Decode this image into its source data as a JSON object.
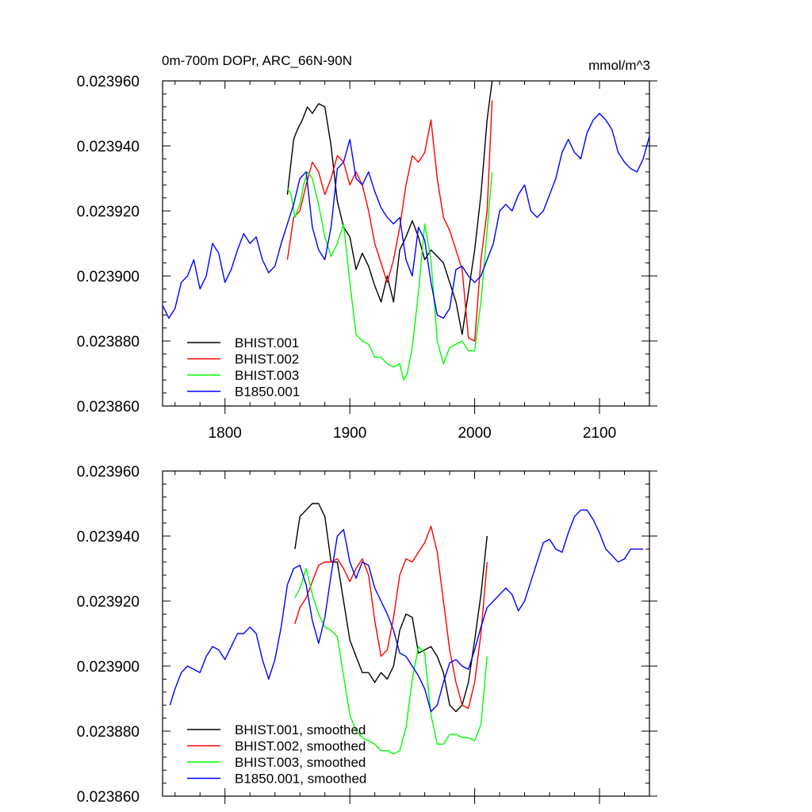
{
  "figure": {
    "title_left": "0m-700m DOPr, ARC_66N-90N",
    "title_right": "mmol/m^3"
  },
  "chart_data": [
    {
      "type": "line",
      "title": "0m-700m DOPr, ARC_66N-90N",
      "units": "mmol/m^3",
      "xlim": [
        1750,
        2140
      ],
      "ylim": [
        0.02386,
        0.02396
      ],
      "xticks": [
        1800,
        1900,
        2000,
        2100
      ],
      "xtick_labels": [
        "1800",
        "1900",
        "2000",
        "2100"
      ],
      "yticks": [
        0.02386,
        0.02388,
        0.0239,
        0.02392,
        0.02394,
        0.02396
      ],
      "ytick_labels": [
        "0.023860",
        "0.023880",
        "0.023900",
        "0.023920",
        "0.023940",
        "0.023960"
      ],
      "legend_position": "bottom-left",
      "series": [
        {
          "name": "BHIST.001",
          "color": "#000000",
          "x": [
            1850,
            1855,
            1858,
            1862,
            1866,
            1870,
            1875,
            1880,
            1885,
            1890,
            1895,
            1900,
            1905,
            1910,
            1915,
            1920,
            1925,
            1930,
            1935,
            1940,
            1945,
            1950,
            1955,
            1960,
            1965,
            1970,
            1975,
            1980,
            1985,
            1990,
            1995,
            2000,
            2005,
            2010,
            2014
          ],
          "y": [
            0.023925,
            0.023942,
            0.023945,
            0.023948,
            0.023952,
            0.02395,
            0.023953,
            0.023952,
            0.02394,
            0.023923,
            0.023915,
            0.023912,
            0.023902,
            0.023907,
            0.023903,
            0.023897,
            0.023892,
            0.0239,
            0.023892,
            0.023908,
            0.023912,
            0.023917,
            0.023912,
            0.023905,
            0.023908,
            0.023906,
            0.023904,
            0.023898,
            0.023892,
            0.023882,
            0.023895,
            0.023908,
            0.023925,
            0.023948,
            0.02396
          ]
        },
        {
          "name": "BHIST.002",
          "color": "#ff0000",
          "x": [
            1850,
            1855,
            1860,
            1865,
            1870,
            1875,
            1880,
            1885,
            1890,
            1895,
            1900,
            1905,
            1910,
            1915,
            1920,
            1925,
            1930,
            1935,
            1940,
            1945,
            1950,
            1955,
            1960,
            1965,
            1970,
            1975,
            1980,
            1985,
            1990,
            1995,
            2000,
            2005,
            2010,
            2014
          ],
          "y": [
            0.023905,
            0.023918,
            0.02392,
            0.023928,
            0.023935,
            0.023932,
            0.023925,
            0.02393,
            0.023937,
            0.023935,
            0.023928,
            0.023932,
            0.023928,
            0.02392,
            0.02391,
            0.023904,
            0.023898,
            0.023905,
            0.023915,
            0.023928,
            0.023937,
            0.023935,
            0.023938,
            0.023948,
            0.02393,
            0.023918,
            0.023914,
            0.023908,
            0.023902,
            0.023881,
            0.02388,
            0.023905,
            0.02392,
            0.023954
          ]
        },
        {
          "name": "BHIST.003",
          "color": "#00ff00",
          "x": [
            1850,
            1853,
            1856,
            1860,
            1863,
            1866,
            1870,
            1875,
            1880,
            1885,
            1890,
            1895,
            1900,
            1905,
            1910,
            1915,
            1920,
            1925,
            1930,
            1935,
            1940,
            1943,
            1946,
            1950,
            1955,
            1960,
            1965,
            1970,
            1975,
            1980,
            1985,
            1990,
            1995,
            2000,
            2005,
            2010,
            2014
          ],
          "y": [
            0.023927,
            0.023925,
            0.023918,
            0.023922,
            0.023928,
            0.023932,
            0.02393,
            0.023922,
            0.023912,
            0.023906,
            0.02391,
            0.023916,
            0.023898,
            0.023882,
            0.02388,
            0.023879,
            0.023875,
            0.023875,
            0.023873,
            0.023872,
            0.023873,
            0.023868,
            0.02387,
            0.023878,
            0.023895,
            0.023916,
            0.023905,
            0.02388,
            0.023873,
            0.023878,
            0.023879,
            0.02388,
            0.023877,
            0.023877,
            0.023892,
            0.023914,
            0.023932
          ]
        },
        {
          "name": "B1850.001",
          "color": "#0000ff",
          "x": [
            1750,
            1755,
            1760,
            1765,
            1770,
            1775,
            1780,
            1785,
            1790,
            1795,
            1800,
            1805,
            1810,
            1815,
            1820,
            1825,
            1830,
            1835,
            1840,
            1845,
            1850,
            1855,
            1860,
            1865,
            1870,
            1875,
            1880,
            1885,
            1890,
            1895,
            1900,
            1905,
            1910,
            1915,
            1920,
            1925,
            1930,
            1935,
            1940,
            1945,
            1950,
            1955,
            1960,
            1965,
            1970,
            1975,
            1980,
            1985,
            1990,
            1995,
            2000,
            2005,
            2010,
            2015,
            2020,
            2025,
            2030,
            2035,
            2040,
            2045,
            2050,
            2055,
            2060,
            2065,
            2070,
            2075,
            2080,
            2085,
            2090,
            2095,
            2100,
            2105,
            2110,
            2115,
            2120,
            2125,
            2130,
            2135,
            2140
          ],
          "y": [
            0.023891,
            0.023887,
            0.02389,
            0.023898,
            0.0239,
            0.023905,
            0.023896,
            0.0239,
            0.02391,
            0.023907,
            0.023898,
            0.023902,
            0.023908,
            0.023913,
            0.02391,
            0.023912,
            0.023905,
            0.023901,
            0.023903,
            0.02391,
            0.023916,
            0.023922,
            0.02393,
            0.023932,
            0.023915,
            0.023908,
            0.023905,
            0.023915,
            0.023933,
            0.023935,
            0.023942,
            0.02393,
            0.023928,
            0.023932,
            0.023926,
            0.023921,
            0.023918,
            0.023916,
            0.023918,
            0.023905,
            0.0239,
            0.023915,
            0.023911,
            0.023898,
            0.023888,
            0.023887,
            0.02389,
            0.023902,
            0.023903,
            0.0239,
            0.023898,
            0.0239,
            0.023905,
            0.02391,
            0.02392,
            0.023922,
            0.02392,
            0.023925,
            0.023928,
            0.02392,
            0.023918,
            0.02392,
            0.023925,
            0.02393,
            0.023938,
            0.023942,
            0.023938,
            0.023936,
            0.023944,
            0.023948,
            0.02395,
            0.023948,
            0.023945,
            0.023938,
            0.023935,
            0.023933,
            0.023932,
            0.023936,
            0.023943
          ]
        }
      ]
    },
    {
      "type": "line",
      "xlim": [
        1750,
        2140
      ],
      "ylim": [
        0.02386,
        0.02396
      ],
      "xticks": [
        1800,
        1900,
        2000,
        2100
      ],
      "yticks": [
        0.02386,
        0.02388,
        0.0239,
        0.02392,
        0.02394,
        0.02396
      ],
      "ytick_labels": [
        "0.023860",
        "0.023880",
        "0.023900",
        "0.023920",
        "0.023940",
        "0.023960"
      ],
      "legend_position": "bottom-left",
      "series": [
        {
          "name": "BHIST.001, smoothed",
          "color": "#000000",
          "x": [
            1856,
            1860,
            1865,
            1870,
            1875,
            1880,
            1885,
            1890,
            1895,
            1900,
            1905,
            1910,
            1915,
            1920,
            1925,
            1930,
            1935,
            1940,
            1945,
            1950,
            1955,
            1960,
            1965,
            1970,
            1975,
            1980,
            1985,
            1990,
            1995,
            2000,
            2005,
            2010
          ],
          "y": [
            0.023936,
            0.023946,
            0.023948,
            0.02395,
            0.02395,
            0.023946,
            0.023932,
            0.023932,
            0.02392,
            0.023908,
            0.023903,
            0.023898,
            0.023898,
            0.023895,
            0.023898,
            0.023896,
            0.0239,
            0.023911,
            0.023916,
            0.023915,
            0.023904,
            0.023905,
            0.023906,
            0.023903,
            0.023898,
            0.023888,
            0.023886,
            0.023888,
            0.023895,
            0.023908,
            0.023922,
            0.02394
          ]
        },
        {
          "name": "BHIST.002, smoothed",
          "color": "#ff0000",
          "x": [
            1856,
            1860,
            1865,
            1870,
            1875,
            1880,
            1885,
            1890,
            1895,
            1900,
            1905,
            1910,
            1915,
            1920,
            1925,
            1930,
            1935,
            1940,
            1945,
            1950,
            1955,
            1960,
            1965,
            1970,
            1975,
            1980,
            1985,
            1990,
            1995,
            2000,
            2005,
            2010
          ],
          "y": [
            0.023913,
            0.023918,
            0.023921,
            0.023926,
            0.023931,
            0.023932,
            0.023932,
            0.023933,
            0.02393,
            0.023926,
            0.02393,
            0.023933,
            0.023928,
            0.023914,
            0.023903,
            0.023905,
            0.023915,
            0.023928,
            0.023933,
            0.023932,
            0.023935,
            0.023938,
            0.023943,
            0.023935,
            0.02392,
            0.023905,
            0.023895,
            0.023888,
            0.023887,
            0.023895,
            0.02391,
            0.023932
          ]
        },
        {
          "name": "BHIST.003, smoothed",
          "color": "#00ff00",
          "x": [
            1856,
            1860,
            1865,
            1870,
            1875,
            1880,
            1885,
            1890,
            1895,
            1900,
            1905,
            1910,
            1915,
            1920,
            1925,
            1930,
            1935,
            1940,
            1945,
            1950,
            1955,
            1960,
            1965,
            1970,
            1975,
            1980,
            1985,
            1990,
            1995,
            2000,
            2005,
            2010
          ],
          "y": [
            0.023921,
            0.023924,
            0.02393,
            0.023922,
            0.023916,
            0.023912,
            0.023911,
            0.023909,
            0.023897,
            0.023885,
            0.02388,
            0.023878,
            0.023877,
            0.023876,
            0.023874,
            0.023874,
            0.023873,
            0.023874,
            0.023881,
            0.023896,
            0.023906,
            0.023904,
            0.023885,
            0.023876,
            0.023876,
            0.023879,
            0.023879,
            0.023878,
            0.023878,
            0.023877,
            0.023882,
            0.023903
          ]
        },
        {
          "name": "B1850.001, smoothed",
          "color": "#0000ff",
          "x": [
            1756,
            1760,
            1765,
            1770,
            1775,
            1780,
            1785,
            1790,
            1795,
            1800,
            1805,
            1810,
            1815,
            1820,
            1825,
            1830,
            1835,
            1840,
            1845,
            1850,
            1855,
            1860,
            1865,
            1870,
            1875,
            1880,
            1885,
            1890,
            1895,
            1900,
            1905,
            1910,
            1915,
            1920,
            1925,
            1930,
            1935,
            1940,
            1945,
            1950,
            1955,
            1960,
            1965,
            1970,
            1975,
            1980,
            1985,
            1990,
            1995,
            2000,
            2005,
            2010,
            2015,
            2020,
            2025,
            2030,
            2035,
            2040,
            2045,
            2050,
            2055,
            2060,
            2065,
            2070,
            2075,
            2080,
            2085,
            2090,
            2095,
            2100,
            2105,
            2110,
            2115,
            2120,
            2125,
            2130,
            2135
          ],
          "y": [
            0.023888,
            0.023893,
            0.023898,
            0.0239,
            0.023899,
            0.023898,
            0.023903,
            0.023906,
            0.023905,
            0.023902,
            0.023906,
            0.02391,
            0.02391,
            0.023912,
            0.02391,
            0.023902,
            0.023896,
            0.023902,
            0.023912,
            0.023925,
            0.02393,
            0.023931,
            0.023925,
            0.023914,
            0.023907,
            0.023915,
            0.023928,
            0.02394,
            0.023942,
            0.023932,
            0.023927,
            0.023932,
            0.023931,
            0.023924,
            0.02392,
            0.023916,
            0.023911,
            0.023904,
            0.023903,
            0.0239,
            0.023897,
            0.023893,
            0.023886,
            0.023888,
            0.023895,
            0.023901,
            0.023902,
            0.0239,
            0.023899,
            0.023905,
            0.023912,
            0.023918,
            0.02392,
            0.023922,
            0.023924,
            0.023922,
            0.023917,
            0.02392,
            0.023926,
            0.023932,
            0.023938,
            0.023939,
            0.023936,
            0.023935,
            0.023941,
            0.023946,
            0.023948,
            0.023948,
            0.023945,
            0.023941,
            0.023936,
            0.023934,
            0.023932,
            0.023933,
            0.023936,
            0.023936,
            0.023936
          ]
        }
      ]
    }
  ]
}
